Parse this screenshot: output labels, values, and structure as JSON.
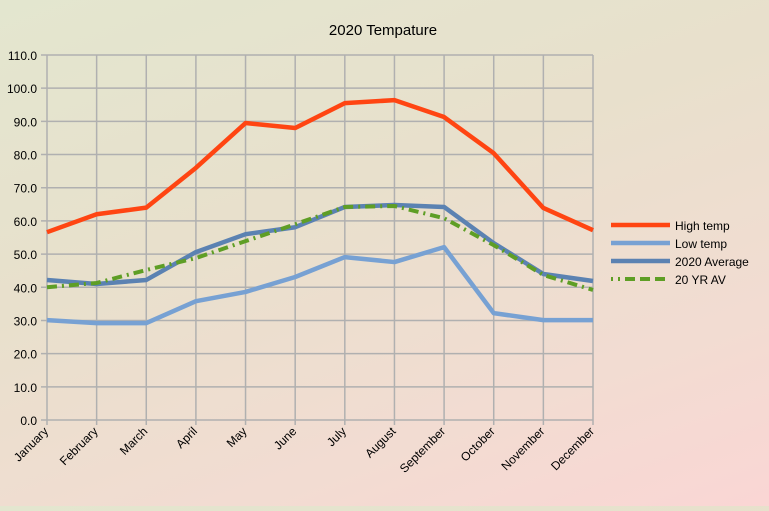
{
  "chart_data": {
    "type": "line",
    "title": "2020 Tempature",
    "xlabel": "",
    "ylabel": "",
    "ylim": [
      0,
      110
    ],
    "yticks": [
      "0.0",
      "10.0",
      "20.0",
      "30.0",
      "40.0",
      "50.0",
      "60.0",
      "70.0",
      "80.0",
      "90.0",
      "100.0",
      "110.0"
    ],
    "grid": true,
    "legend_position": "right",
    "categories": [
      "January",
      "February",
      "March",
      "April",
      "May",
      "June",
      "July",
      "August",
      "September",
      "October",
      "November",
      "December"
    ],
    "series": [
      {
        "name": "High temp",
        "color": "#ff4512",
        "style": "solid",
        "values": [
          56.6,
          62.0,
          64.0,
          76.0,
          89.5,
          88.0,
          95.5,
          96.4,
          91.3,
          80.4,
          63.9,
          57.2
        ]
      },
      {
        "name": "Low temp",
        "color": "#77a1d3",
        "style": "solid",
        "values": [
          30.1,
          29.2,
          29.2,
          35.8,
          38.6,
          43.1,
          49.1,
          47.6,
          52.1,
          32.2,
          30.1,
          30.1
        ]
      },
      {
        "name": "2020 Average",
        "color": "#5b82b2",
        "style": "solid",
        "values": [
          42.2,
          41.0,
          42.2,
          50.6,
          56.0,
          58.1,
          64.2,
          64.8,
          64.2,
          53.3,
          44.0,
          41.9
        ]
      },
      {
        "name": "20 YR AV",
        "color": "#5e9e25",
        "style": "dash-dot",
        "values": [
          40.0,
          41.3,
          45.2,
          48.8,
          53.9,
          59.0,
          64.2,
          64.5,
          60.8,
          52.7,
          43.7,
          39.2
        ]
      }
    ]
  }
}
